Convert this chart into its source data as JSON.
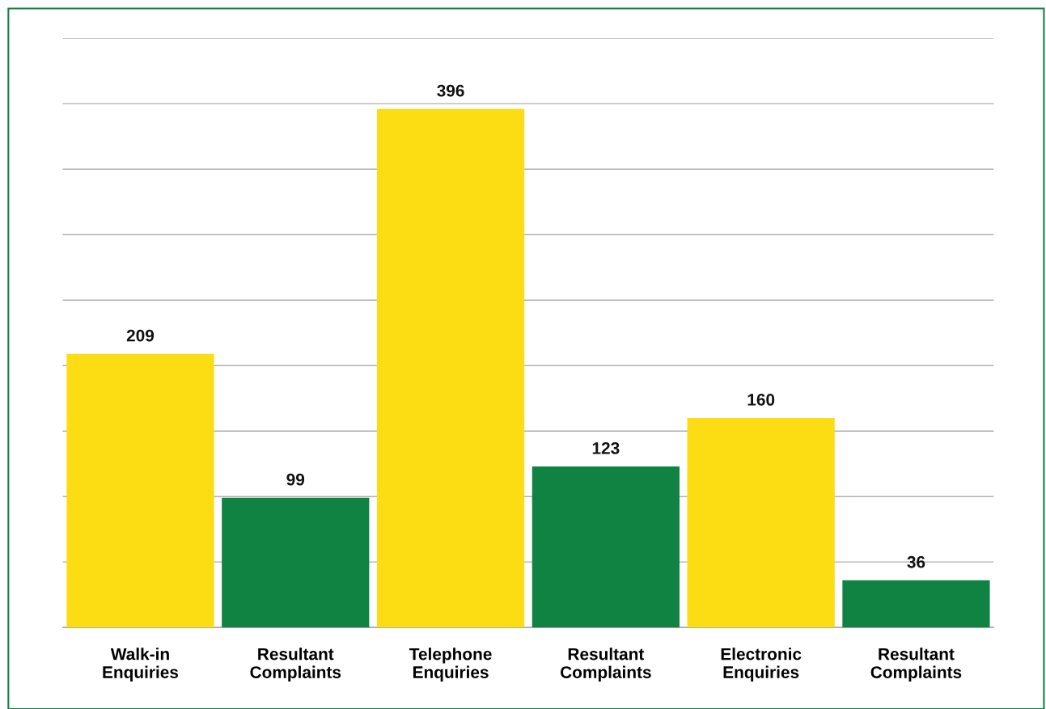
{
  "chart_data": {
    "type": "bar",
    "categories": [
      "Walk-in\nEnquiries",
      "Resultant\nComplaints",
      "Telephone\nEnquiries",
      "Resultant\nComplaints",
      "Electronic\nEnquiries",
      "Resultant\nComplaints"
    ],
    "values": [
      209,
      99,
      396,
      123,
      160,
      36
    ],
    "colors": [
      "#fcdc12",
      "#108242",
      "#fcdc12",
      "#108242",
      "#fcdc12",
      "#108242"
    ],
    "ylim": [
      0,
      450
    ],
    "yticks": [
      {
        "value": 0,
        "label": null
      },
      {
        "value": 50,
        "label": null
      },
      {
        "value": 100,
        "label": null
      },
      {
        "value": 150,
        "label": null
      },
      {
        "value": 200,
        "label": null
      },
      {
        "value": 250,
        "label": null
      },
      {
        "value": 300,
        "label": null
      },
      {
        "value": 350,
        "label": null
      },
      {
        "value": 400,
        "label": null
      },
      {
        "value": 450,
        "label": null
      }
    ],
    "grid": "y",
    "tick_labels": "x",
    "data_labels": true
  }
}
